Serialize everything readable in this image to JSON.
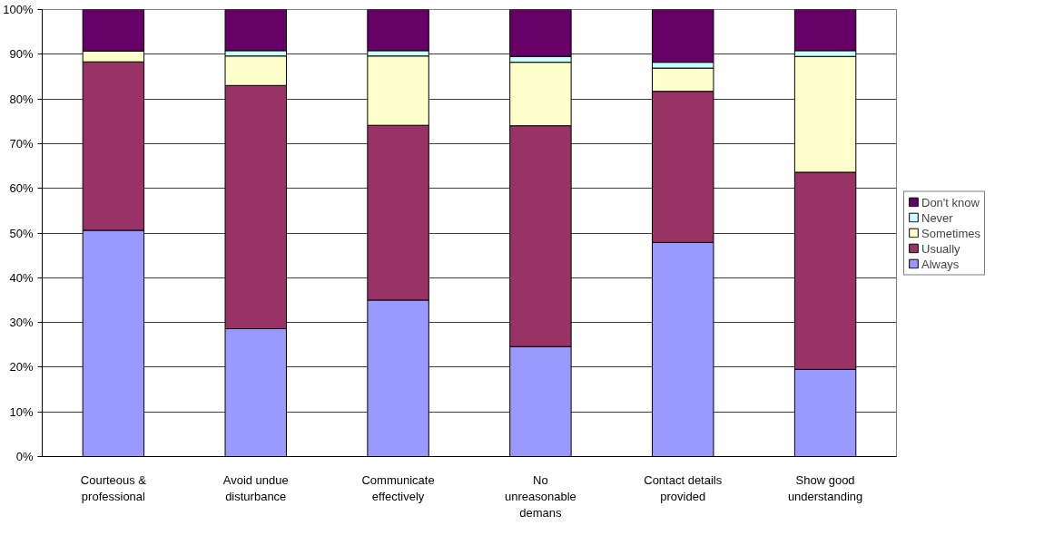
{
  "chart_data": {
    "type": "bar",
    "stacked": true,
    "categories": [
      "Courteous &\nprofessional",
      "Avoid undue\ndisturbance",
      "Communicate\neffectively",
      "No\nunreasonable\ndemans",
      "Contact details\nprovided",
      "Show good\nunderstanding"
    ],
    "series": [
      {
        "name": "Always",
        "color": "#9999ff",
        "values": [
          50.6,
          28.6,
          35.0,
          24.6,
          47.9,
          19.5
        ]
      },
      {
        "name": "Usually",
        "color": "#993366",
        "values": [
          37.7,
          54.4,
          39.1,
          49.4,
          33.8,
          44.1
        ]
      },
      {
        "name": "Sometimes",
        "color": "#ffffcc",
        "values": [
          2.4,
          6.6,
          15.5,
          14.2,
          5.2,
          25.9
        ]
      },
      {
        "name": "Never",
        "color": "#ccffff",
        "values": [
          null,
          1.2,
          1.2,
          1.3,
          1.3,
          1.3
        ]
      },
      {
        "name": "Don't know",
        "color": "#660066",
        "values": [
          9.3,
          9.2,
          9.2,
          10.5,
          11.8,
          9.2
        ]
      }
    ],
    "ylim": [
      0,
      100
    ],
    "yticks": [
      {
        "value": 0,
        "label": "0%"
      },
      {
        "value": 10,
        "label": "10%"
      },
      {
        "value": 20,
        "label": "20%"
      },
      {
        "value": 30,
        "label": "30%"
      },
      {
        "value": 40,
        "label": "40%"
      },
      {
        "value": 50,
        "label": "50%"
      },
      {
        "value": 60,
        "label": "60%"
      },
      {
        "value": 70,
        "label": "70%"
      },
      {
        "value": 80,
        "label": "80%"
      },
      {
        "value": 90,
        "label": "90%"
      },
      {
        "value": 100,
        "label": "100%"
      }
    ],
    "grid": "y",
    "legend": "right"
  }
}
